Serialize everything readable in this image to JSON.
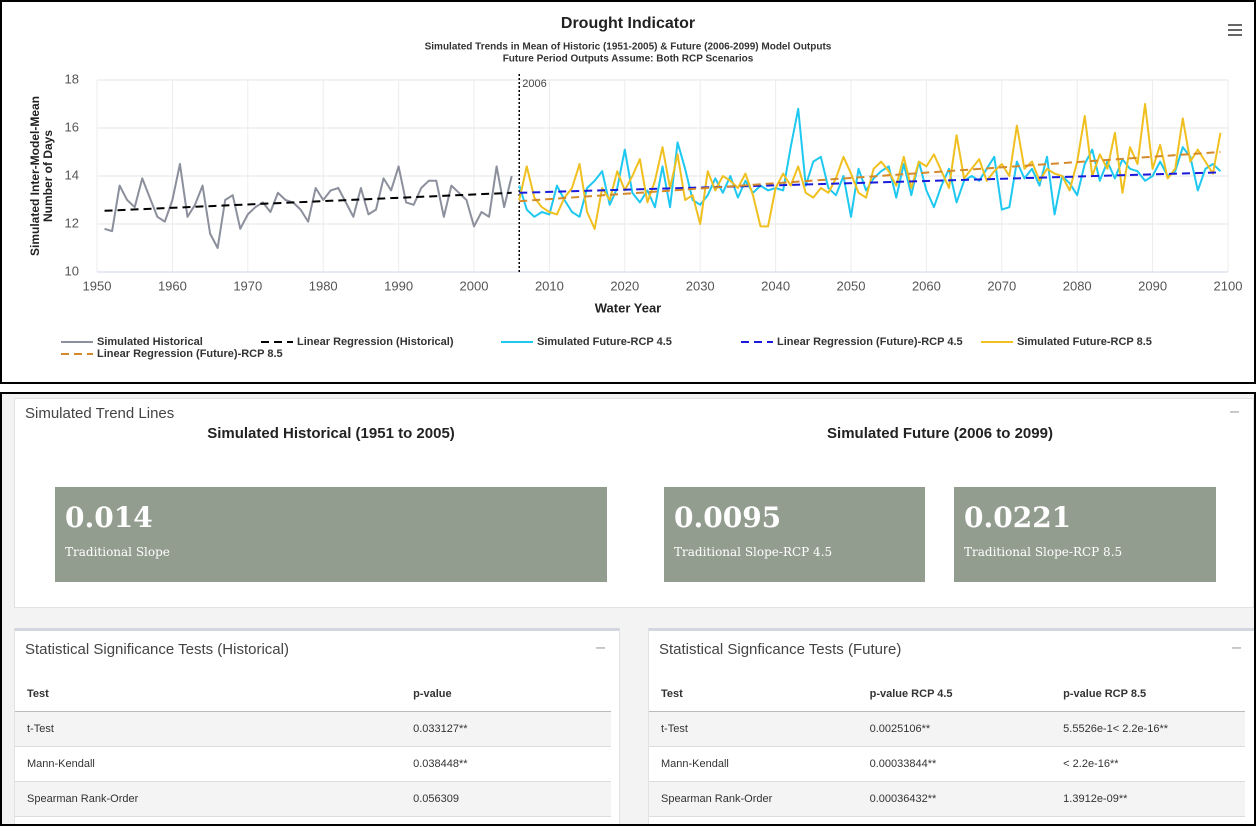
{
  "chart_data": {
    "type": "line",
    "title": "Drought Indicator",
    "subtitle": [
      "Simulated Trends in Mean of Historic (1951-2005) & Future (2006-2099) Model Outputs",
      "Future Period Outputs Assume: Both RCP Scenarios"
    ],
    "y_label": [
      "Simulated Inter-Model-Mean",
      "Number of Days"
    ],
    "x_label": "Water Year",
    "xlim": [
      1950,
      2100
    ],
    "xticks": [
      1950,
      1960,
      1970,
      1980,
      1990,
      2000,
      2010,
      2020,
      2030,
      2040,
      2050,
      2060,
      2070,
      2080,
      2090,
      2100
    ],
    "ylim": [
      10,
      18
    ],
    "yticks": [
      10,
      12,
      14,
      16,
      18
    ],
    "grid": true,
    "annotations": [
      {
        "x": 2006,
        "label": "2006"
      }
    ],
    "series": [
      {
        "name": "Simulated Historical",
        "color": "#8c8f9c",
        "dashed": false,
        "x": [
          1951,
          1952,
          1953,
          1954,
          1955,
          1956,
          1957,
          1958,
          1959,
          1960,
          1961,
          1962,
          1963,
          1964,
          1965,
          1966,
          1967,
          1968,
          1969,
          1970,
          1971,
          1972,
          1973,
          1974,
          1975,
          1976,
          1977,
          1978,
          1979,
          1980,
          1981,
          1982,
          1983,
          1984,
          1985,
          1986,
          1987,
          1988,
          1989,
          1990,
          1991,
          1992,
          1993,
          1994,
          1995,
          1996,
          1997,
          1998,
          1999,
          2000,
          2001,
          2002,
          2003,
          2004,
          2005
        ],
        "values": [
          11.8,
          11.7,
          13.6,
          13.0,
          12.7,
          13.9,
          13.1,
          12.3,
          12.1,
          13.0,
          14.5,
          12.3,
          12.8,
          13.6,
          11.6,
          11.0,
          13.0,
          13.2,
          11.8,
          12.4,
          12.7,
          12.9,
          12.5,
          13.3,
          13.0,
          12.9,
          12.6,
          12.1,
          13.5,
          13.0,
          13.4,
          13.5,
          12.9,
          12.3,
          13.5,
          12.4,
          12.6,
          13.9,
          13.4,
          14.4,
          12.9,
          12.8,
          13.5,
          13.8,
          13.8,
          12.3,
          13.6,
          13.3,
          13.0,
          11.9,
          12.5,
          12.3,
          14.4,
          12.7,
          14.0
        ]
      },
      {
        "name": "Linear Regression (Historical)",
        "color": "#000000",
        "dashed": true,
        "x": [
          1951,
          2005
        ],
        "values": [
          12.55,
          13.3
        ]
      },
      {
        "name": "Simulated Future-RCP 4.5",
        "color": "#1ec8f0",
        "dashed": false,
        "x": [
          2006,
          2007,
          2008,
          2009,
          2010,
          2011,
          2012,
          2013,
          2014,
          2015,
          2016,
          2017,
          2018,
          2019,
          2020,
          2021,
          2022,
          2023,
          2024,
          2025,
          2026,
          2027,
          2028,
          2029,
          2030,
          2031,
          2032,
          2033,
          2034,
          2035,
          2036,
          2037,
          2038,
          2039,
          2040,
          2041,
          2042,
          2043,
          2044,
          2045,
          2046,
          2047,
          2048,
          2049,
          2050,
          2051,
          2052,
          2053,
          2054,
          2055,
          2056,
          2057,
          2058,
          2059,
          2060,
          2061,
          2062,
          2063,
          2064,
          2065,
          2066,
          2067,
          2068,
          2069,
          2070,
          2071,
          2072,
          2073,
          2074,
          2075,
          2076,
          2077,
          2078,
          2079,
          2080,
          2081,
          2082,
          2083,
          2084,
          2085,
          2086,
          2087,
          2088,
          2089,
          2090,
          2091,
          2092,
          2093,
          2094,
          2095,
          2096,
          2097,
          2098,
          2099
        ],
        "values": [
          13.6,
          12.6,
          12.3,
          12.5,
          12.4,
          13.6,
          13.0,
          12.5,
          12.3,
          13.5,
          13.8,
          14.2,
          12.8,
          13.5,
          15.1,
          13.3,
          12.9,
          13.4,
          12.7,
          14.4,
          12.7,
          15.4,
          14.3,
          13.0,
          12.8,
          13.2,
          13.9,
          13.3,
          14.0,
          13.1,
          13.8,
          13.3,
          13.6,
          13.4,
          13.5,
          13.4,
          15.2,
          16.8,
          13.6,
          14.6,
          14.8,
          13.5,
          13.2,
          14.0,
          12.3,
          14.3,
          13.4,
          13.9,
          14.2,
          14.4,
          13.1,
          14.5,
          13.2,
          14.6,
          13.4,
          12.7,
          13.6,
          14.3,
          12.9,
          13.8,
          14.0,
          13.8,
          14.3,
          14.8,
          12.6,
          12.7,
          14.6,
          13.9,
          14.3,
          13.6,
          14.8,
          12.4,
          14.0,
          13.7,
          13.2,
          14.5,
          15.1,
          13.8,
          14.6,
          13.9,
          14.7,
          14.3,
          14.2,
          13.8,
          14.0,
          14.6,
          14.0,
          14.2,
          15.2,
          14.8,
          13.4,
          14.3,
          14.5,
          14.2
        ]
      },
      {
        "name": "Linear Regression (Future)-RCP 4.5",
        "color": "#1a1adb",
        "dashed": true,
        "x": [
          2006,
          2099
        ],
        "values": [
          13.3,
          14.15
        ]
      },
      {
        "name": "Simulated Future-RCP 8.5",
        "color": "#f0c020",
        "dashed": false,
        "x": [
          2006,
          2007,
          2008,
          2009,
          2010,
          2011,
          2012,
          2013,
          2014,
          2015,
          2016,
          2017,
          2018,
          2019,
          2020,
          2021,
          2022,
          2023,
          2024,
          2025,
          2026,
          2027,
          2028,
          2029,
          2030,
          2031,
          2032,
          2033,
          2034,
          2035,
          2036,
          2037,
          2038,
          2039,
          2040,
          2041,
          2042,
          2043,
          2044,
          2045,
          2046,
          2047,
          2048,
          2049,
          2050,
          2051,
          2052,
          2053,
          2054,
          2055,
          2056,
          2057,
          2058,
          2059,
          2060,
          2061,
          2062,
          2063,
          2064,
          2065,
          2066,
          2067,
          2068,
          2069,
          2070,
          2071,
          2072,
          2073,
          2074,
          2075,
          2076,
          2077,
          2078,
          2079,
          2080,
          2081,
          2082,
          2083,
          2084,
          2085,
          2086,
          2087,
          2088,
          2089,
          2090,
          2091,
          2092,
          2093,
          2094,
          2095,
          2096,
          2097,
          2098,
          2099
        ],
        "values": [
          13.0,
          14.4,
          13.1,
          12.7,
          12.5,
          12.4,
          13.1,
          13.5,
          14.5,
          12.5,
          11.8,
          13.5,
          13.0,
          14.2,
          13.4,
          14.0,
          14.7,
          12.9,
          13.8,
          15.2,
          13.5,
          14.9,
          13.0,
          13.2,
          12.0,
          14.2,
          13.4,
          14.0,
          13.8,
          13.5,
          14.1,
          13.2,
          11.9,
          11.9,
          13.5,
          14.1,
          13.6,
          14.4,
          13.3,
          13.1,
          13.5,
          13.3,
          13.9,
          14.8,
          14.1,
          13.3,
          13.1,
          14.3,
          14.6,
          14.2,
          13.6,
          14.8,
          13.5,
          14.6,
          14.4,
          14.9,
          14.2,
          13.5,
          15.7,
          13.9,
          14.3,
          14.7,
          13.8,
          14.2,
          14.5,
          14.0,
          16.1,
          14.3,
          14.6,
          13.8,
          14.3,
          14.1,
          14.0,
          13.4,
          14.6,
          16.5,
          14.0,
          14.9,
          14.3,
          15.8,
          13.3,
          15.2,
          14.5,
          17.0,
          14.3,
          15.3,
          13.9,
          14.3,
          16.4,
          14.6,
          15.1,
          14.6,
          14.1,
          15.8
        ]
      },
      {
        "name": "Linear Regression (Future)-RCP 8.5",
        "color": "#d4892a",
        "dashed": true,
        "x": [
          2006,
          2099
        ],
        "values": [
          12.95,
          15.0
        ]
      }
    ]
  },
  "trend_panel": {
    "title": "Simulated Trend Lines",
    "historical": {
      "heading": "Simulated Historical (1951 to 2005)",
      "boxes": [
        {
          "value": "0.014",
          "label": "Traditional Slope"
        }
      ]
    },
    "future": {
      "heading": "Simulated Future (2006 to 2099)",
      "boxes": [
        {
          "value": "0.0095",
          "label": "Traditional Slope-RCP 4.5"
        },
        {
          "value": "0.0221",
          "label": "Traditional Slope-RCP 8.5"
        }
      ]
    }
  },
  "tables": [
    {
      "title": "Statistical Significance Tests (Historical)",
      "columns": [
        "Test",
        "p-value"
      ],
      "rows": [
        [
          "t-Test",
          "0.033127**"
        ],
        [
          "Mann-Kendall",
          "0.038448**"
        ],
        [
          "Spearman Rank-Order",
          "0.056309"
        ]
      ]
    },
    {
      "title": "Statistical Signficance Tests (Future)",
      "columns": [
        "Test",
        "p-value RCP 4.5",
        "p-value RCP 8.5"
      ],
      "rows": [
        [
          "t-Test",
          "0.0025106**",
          "5.5526e-1< 2.2e-16**"
        ],
        [
          "Mann-Kendall",
          "0.00033844**",
          "< 2.2e-16**"
        ],
        [
          "Spearman Rank-Order",
          "0.00036432**",
          "1.3912e-09**"
        ]
      ]
    }
  ]
}
